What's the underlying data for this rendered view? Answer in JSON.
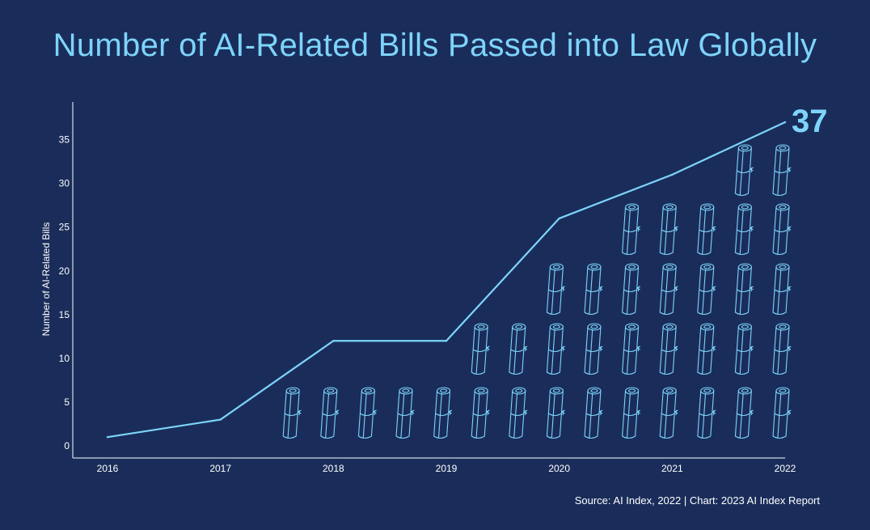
{
  "title": "Number of AI-Related Bills Passed into Law Globally",
  "source": "Source: AI Index, 2022 | Chart: 2023 AI Index Report",
  "colors": {
    "background": "#1a2d5a",
    "accent": "#7ed4fb",
    "axis": "#ffffff"
  },
  "chart_data": {
    "type": "line",
    "title": "Number of AI-Related Bills Passed into Law Globally",
    "xlabel": "",
    "ylabel": "Number of AI-Related Bills",
    "x": [
      "2016",
      "2017",
      "2018",
      "2019",
      "2020",
      "2021",
      "2022"
    ],
    "series": [
      {
        "values": [
          1,
          3,
          12,
          12,
          26,
          31,
          37
        ]
      }
    ],
    "ylim": [
      0,
      37
    ],
    "yticks": [
      0,
      5,
      10,
      15,
      20,
      25,
      30,
      35
    ],
    "final_value_label": "37",
    "pictogram": {
      "icon": "scroll-icon",
      "row_counts": [
        14,
        9,
        7,
        5,
        2
      ]
    },
    "grid": false,
    "legend": "none"
  }
}
